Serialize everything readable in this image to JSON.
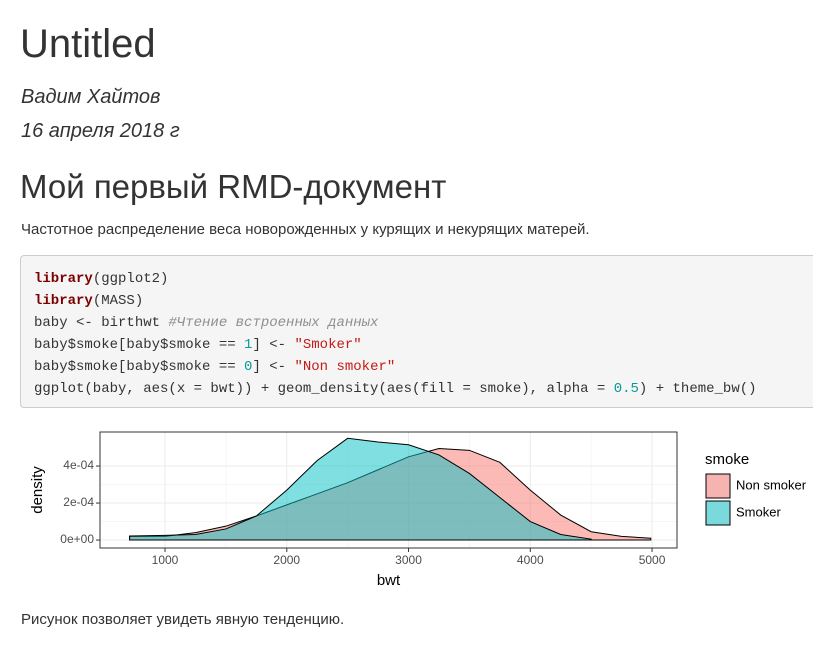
{
  "header": {
    "title": "Untitled",
    "author": "Вадим Хайтов",
    "date": "16 апреля 2018 г"
  },
  "section": {
    "heading": "Мой первый RMD-документ",
    "intro": "Частотное распределение веса новорожденных у курящих и некурящих матерей.",
    "code": [
      [
        {
          "text": "library",
          "color": "#7d0000",
          "bold": true
        },
        {
          "text": "(ggplot2)",
          "color": "#333333"
        }
      ],
      [
        {
          "text": "library",
          "color": "#7d0000",
          "bold": true
        },
        {
          "text": "(MASS)",
          "color": "#333333"
        }
      ],
      [
        {
          "text": "baby <- birthwt ",
          "color": "#333333"
        },
        {
          "text": "#Чтение встроенных данных",
          "color": "#8e908c",
          "italic": true
        }
      ],
      [
        {
          "text": "baby$smoke[baby$smoke == ",
          "color": "#333333"
        },
        {
          "text": "1",
          "color": "#099999"
        },
        {
          "text": "] <- ",
          "color": "#333333"
        },
        {
          "text": "\"Smoker\"",
          "color": "#c41a16"
        }
      ],
      [
        {
          "text": "baby$smoke[baby$smoke == ",
          "color": "#333333"
        },
        {
          "text": "0",
          "color": "#099999"
        },
        {
          "text": "] <- ",
          "color": "#333333"
        },
        {
          "text": "\"Non smoker\"",
          "color": "#c41a16"
        }
      ],
      [
        {
          "text": "ggplot(baby, aes(x = bwt)) + geom_density(aes(fill = smoke), alpha = ",
          "color": "#333333"
        },
        {
          "text": "0.5",
          "color": "#099999"
        },
        {
          "text": ") + theme_bw()",
          "color": "#333333"
        }
      ]
    ],
    "caption": "Рисунок позволяет увидеть явную тенденцию."
  },
  "chart_data": {
    "type": "area",
    "x_label": "bwt",
    "y_label": "density",
    "legend_title": "smoke",
    "legend_position": "right",
    "grid": true,
    "x": [
      709,
      1000,
      1250,
      1500,
      1750,
      2000,
      2250,
      2500,
      2750,
      3000,
      3250,
      3500,
      3750,
      4000,
      4250,
      4500,
      4750,
      4990
    ],
    "series": [
      {
        "name": "Non smoker",
        "color": "#f8766d",
        "values": [
          2e-05,
          2e-05,
          4e-05,
          7.5e-05,
          0.00013,
          0.00019,
          0.00025,
          0.00031,
          0.00038,
          0.00045,
          0.000495,
          0.000485,
          0.00042,
          0.00027,
          0.000135,
          4.5e-05,
          2e-05,
          1e-05
        ]
      },
      {
        "name": "Smoker",
        "color": "#00bfc4",
        "values": [
          2.2e-05,
          2.5e-05,
          3e-05,
          6e-05,
          0.00013,
          0.00027,
          0.00043,
          0.00055,
          0.00053,
          0.000515,
          0.00046,
          0.00036,
          0.00023,
          0.0001,
          3e-05,
          5e-06,
          null,
          null
        ]
      }
    ],
    "alpha": 0.5,
    "xlim": [
      466,
      5205
    ],
    "xticks": [
      1000,
      2000,
      3000,
      4000,
      5000
    ],
    "ylim": [
      -4.3e-05,
      0.000584
    ],
    "yticks": [
      {
        "value": 0,
        "label": "0e+00"
      },
      {
        "value": 0.0002,
        "label": "2e-04"
      },
      {
        "value": 0.0004,
        "label": "4e-04"
      }
    ]
  }
}
